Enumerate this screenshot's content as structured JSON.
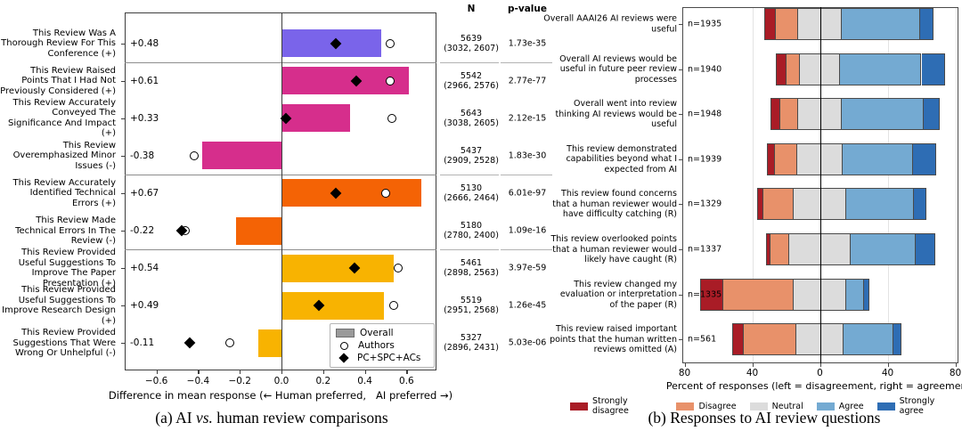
{
  "figure": {
    "caption_a": {
      "pre": "(a) AI ",
      "italic": "vs.",
      "post": " human review comparisons"
    },
    "caption_b": "(b) Responses to AI review questions"
  },
  "chart_data": [
    {
      "type": "bar",
      "orientation": "horizontal-diverging",
      "title": "AI vs. human review comparisons",
      "xlabel": "Difference in mean response (← Human preferred,   AI preferred →)",
      "xlim": [
        -0.75,
        0.74
      ],
      "xticks": [
        -0.6,
        -0.4,
        -0.2,
        0.0,
        0.2,
        0.4,
        0.6
      ],
      "xtick_labels": [
        "−0.6",
        "−0.4",
        "−0.2",
        "0.0",
        "0.2",
        "0.4",
        "0.6"
      ],
      "grid": false,
      "columns": {
        "n_header": "N",
        "p_header": "p-value"
      },
      "legend_position": "lower right",
      "legend": [
        {
          "label": "Overall",
          "marker": "bar",
          "color": "#9a9a9a"
        },
        {
          "label": "Authors",
          "marker": "circle"
        },
        {
          "label": "PC+SPC+ACs",
          "marker": "diamond"
        }
      ],
      "group_separators_after_rows": [
        0,
        3,
        5
      ],
      "rows": [
        {
          "label_lines": [
            "This Review Was A",
            "Thorough Review For This",
            "Conference (+)"
          ],
          "value": 0.48,
          "value_label": "+0.48",
          "color": "#7a64ea",
          "pc_spc_acs": 0.26,
          "authors": 0.52,
          "n": "5639",
          "n_sub": "(3032, 2607)",
          "p": "1.73e-35"
        },
        {
          "label_lines": [
            "This Review Raised",
            "Points That I Had Not",
            "Previously Considered (+)"
          ],
          "value": 0.61,
          "value_label": "+0.61",
          "color": "#d62e8c",
          "pc_spc_acs": 0.36,
          "authors": 0.52,
          "n": "5542",
          "n_sub": "(2966, 2576)",
          "p": "2.77e-77"
        },
        {
          "label_lines": [
            "This Review Accurately",
            "Conveyed The",
            "Significance And Impact (+)"
          ],
          "value": 0.33,
          "value_label": "+0.33",
          "color": "#d62e8c",
          "pc_spc_acs": 0.02,
          "authors": 0.53,
          "n": "5643",
          "n_sub": "(3038, 2605)",
          "p": "2.12e-15"
        },
        {
          "label_lines": [
            "This Review",
            "Overemphasized Minor",
            "Issues (-)"
          ],
          "value": -0.38,
          "value_label": "-0.38",
          "color": "#d62e8c",
          "pc_spc_acs": null,
          "authors": -0.42,
          "n": "5437",
          "n_sub": "(2909, 2528)",
          "p": "1.83e-30"
        },
        {
          "label_lines": [
            "This Review Accurately",
            "Identified Technical",
            "Errors (+)"
          ],
          "value": 0.67,
          "value_label": "+0.67",
          "color": "#f46305",
          "pc_spc_acs": 0.26,
          "authors": 0.5,
          "n": "5130",
          "n_sub": "(2666, 2464)",
          "p": "6.01e-97"
        },
        {
          "label_lines": [
            "This Review Made",
            "Technical Errors In The",
            "Review (-)"
          ],
          "value": -0.22,
          "value_label": "-0.22",
          "color": "#f46305",
          "pc_spc_acs": -0.48,
          "authors": -0.46,
          "n": "5180",
          "n_sub": "(2780, 2400)",
          "p": "1.09e-16"
        },
        {
          "label_lines": [
            "This Review Provided",
            "Useful Suggestions To",
            "Improve The Paper",
            "Presentation (+)"
          ],
          "value": 0.54,
          "value_label": "+0.54",
          "color": "#f8b301",
          "pc_spc_acs": 0.35,
          "authors": 0.56,
          "n": "5461",
          "n_sub": "(2898, 2563)",
          "p": "3.97e-59"
        },
        {
          "label_lines": [
            "This Review Provided",
            "Useful Suggestions To",
            "Improve Research Design (+)"
          ],
          "value": 0.49,
          "value_label": "+0.49",
          "color": "#f8b301",
          "pc_spc_acs": 0.18,
          "authors": 0.54,
          "n": "5519",
          "n_sub": "(2951, 2568)",
          "p": "1.26e-45"
        },
        {
          "label_lines": [
            "This Review Provided",
            "Suggestions That Were",
            "Wrong Or Unhelpful (-)"
          ],
          "value": -0.11,
          "value_label": "-0.11",
          "color": "#f8b301",
          "pc_spc_acs": -0.44,
          "authors": -0.25,
          "n": "5327",
          "n_sub": "(2896, 2431)",
          "p": "5.03e-06"
        }
      ]
    },
    {
      "type": "bar",
      "orientation": "horizontal-diverging-stacked",
      "title": "Responses to AI review questions",
      "xlabel": "Percent of responses (left = disagreement, right = agreement)",
      "xlim": [
        -80,
        82
      ],
      "xticks": [
        -80,
        -40,
        0,
        40,
        80
      ],
      "xtick_labels": [
        "80",
        "40",
        "0",
        "40",
        "80"
      ],
      "grid": true,
      "categories": [
        "Strongly disagree",
        "Disagree",
        "Neutral",
        "Agree",
        "Strongly agree"
      ],
      "colors": [
        "#a91c26",
        "#e8916a",
        "#dcdcdc",
        "#74aad2",
        "#2e6db4"
      ],
      "legend_position": "bottom",
      "rows": [
        {
          "label_lines": [
            "Overall AAAI26 AI reviews were",
            "useful"
          ],
          "n_label": "n=1935",
          "values": [
            7,
            13,
            26,
            46,
            8
          ]
        },
        {
          "label_lines": [
            "Overall AI reviews would be",
            "useful in future peer review",
            "processes"
          ],
          "n_label": "n=1940",
          "values": [
            6.5,
            7.5,
            24,
            48,
            14
          ]
        },
        {
          "label_lines": [
            "Overall went into review",
            "thinking AI reviews would be",
            "useful"
          ],
          "n_label": "n=1948",
          "values": [
            5.5,
            10.5,
            26,
            48.5,
            9.5
          ]
        },
        {
          "label_lines": [
            "This review demonstrated",
            "capabilities beyond what I",
            "expected from AI"
          ],
          "n_label": "n=1939",
          "values": [
            5,
            13,
            27,
            41.5,
            13.5
          ]
        },
        {
          "label_lines": [
            "This review found concerns",
            "that a human reviewer would",
            "have difficulty catching (R)"
          ],
          "n_label": "n=1329",
          "values": [
            4,
            17.5,
            31.5,
            40,
            7
          ]
        },
        {
          "label_lines": [
            "This review overlooked points",
            "that a human reviewer would",
            "likely have caught (R)"
          ],
          "n_label": "n=1337",
          "values": [
            2.5,
            11,
            36.5,
            38.5,
            11.5
          ]
        },
        {
          "label_lines": [
            "This review changed my",
            "evaluation or interpretation",
            "of the paper (R)"
          ],
          "n_label": "n=1335",
          "values": [
            14,
            41.5,
            31,
            10.5,
            3
          ]
        },
        {
          "label_lines": [
            "This review raised important",
            "points that the human written",
            "reviews omitted (A)"
          ],
          "n_label": "n=561",
          "values": [
            7,
            31,
            27.5,
            29.5,
            5
          ]
        }
      ]
    }
  ]
}
